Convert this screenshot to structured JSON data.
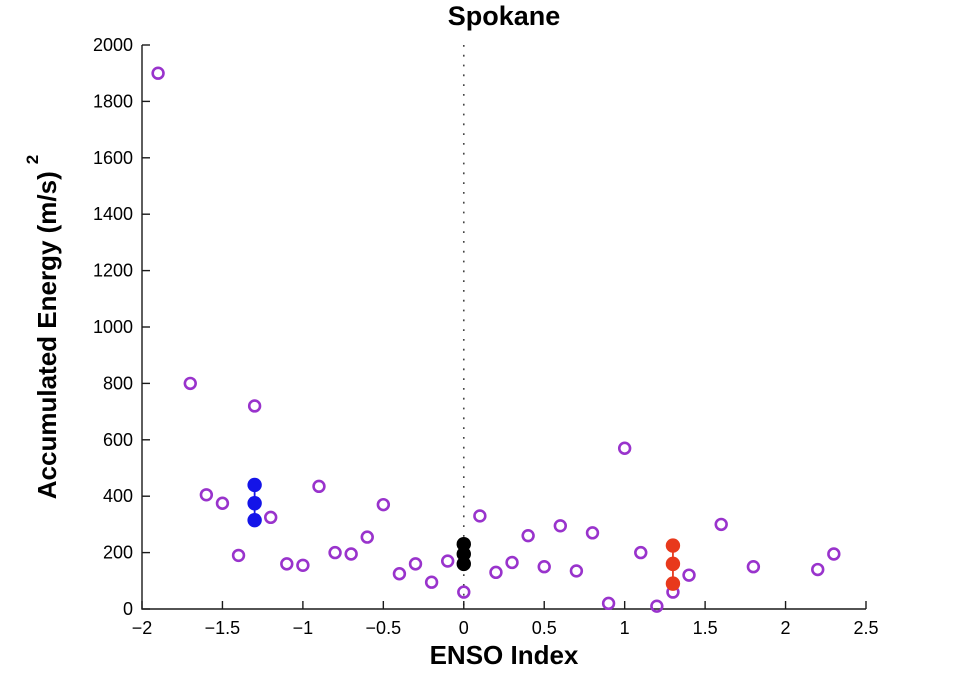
{
  "chart_data": {
    "type": "scatter",
    "title": "Spokane",
    "xlabel": "ENSO Index",
    "ylabel": "Accumulated Energy (m/s)",
    "ylabel_superscript": "2",
    "xlim": [
      -2,
      2.5
    ],
    "ylim": [
      0,
      2000
    ],
    "grid": false,
    "legend": "none",
    "background_color": "#ffffff",
    "axis_color": "#1a1a1a",
    "xticks": {
      "values": [
        -2,
        -1.5,
        -1,
        -0.5,
        0,
        0.5,
        1,
        1.5,
        2,
        2.5
      ],
      "labels": [
        "−2",
        "−1.5",
        "−1",
        "−0.5",
        "0",
        "0.5",
        "1",
        "1.5",
        "2",
        "2.5"
      ]
    },
    "yticks": {
      "values": [
        0,
        200,
        400,
        600,
        800,
        1000,
        1200,
        1400,
        1600,
        1800,
        2000
      ],
      "labels": [
        "0",
        "200",
        "400",
        "600",
        "800",
        "1000",
        "1200",
        "1400",
        "1600",
        "1800",
        "2000"
      ]
    },
    "reference_line": {
      "axis": "x",
      "value": 0,
      "style": "dotted",
      "color": "#444444"
    },
    "series": [
      {
        "name": "purple-open-circles",
        "marker": "open-circle",
        "color": "#9933cc",
        "connected": false,
        "points": [
          [
            -1.9,
            1900
          ],
          [
            -1.7,
            800
          ],
          [
            -1.6,
            405
          ],
          [
            -1.5,
            375
          ],
          [
            -1.4,
            190
          ],
          [
            -1.3,
            720
          ],
          [
            -1.2,
            325
          ],
          [
            -1.1,
            160
          ],
          [
            -1.0,
            155
          ],
          [
            -0.9,
            435
          ],
          [
            -0.8,
            200
          ],
          [
            -0.7,
            195
          ],
          [
            -0.6,
            255
          ],
          [
            -0.5,
            370
          ],
          [
            -0.4,
            125
          ],
          [
            -0.3,
            160
          ],
          [
            -0.2,
            95
          ],
          [
            -0.1,
            170
          ],
          [
            0.0,
            60
          ],
          [
            0.1,
            330
          ],
          [
            0.2,
            130
          ],
          [
            0.3,
            165
          ],
          [
            0.4,
            260
          ],
          [
            0.5,
            150
          ],
          [
            0.6,
            295
          ],
          [
            0.7,
            135
          ],
          [
            0.8,
            270
          ],
          [
            0.9,
            20
          ],
          [
            1.0,
            570
          ],
          [
            1.1,
            200
          ],
          [
            1.2,
            10
          ],
          [
            1.3,
            60
          ],
          [
            1.4,
            120
          ],
          [
            1.6,
            300
          ],
          [
            1.8,
            150
          ],
          [
            2.2,
            140
          ],
          [
            2.3,
            195
          ]
        ]
      },
      {
        "name": "blue-cluster",
        "marker": "filled-circle",
        "color": "#1414e8",
        "connected": true,
        "points": [
          [
            -1.3,
            440
          ],
          [
            -1.3,
            375
          ],
          [
            -1.3,
            315
          ]
        ]
      },
      {
        "name": "black-cluster",
        "marker": "filled-circle",
        "color": "#000000",
        "connected": true,
        "points": [
          [
            0,
            230
          ],
          [
            0,
            195
          ],
          [
            0,
            160
          ]
        ]
      },
      {
        "name": "red-cluster",
        "marker": "filled-circle",
        "color": "#e8391c",
        "connected": true,
        "points": [
          [
            1.3,
            225
          ],
          [
            1.3,
            160
          ],
          [
            1.3,
            90
          ]
        ]
      }
    ]
  }
}
